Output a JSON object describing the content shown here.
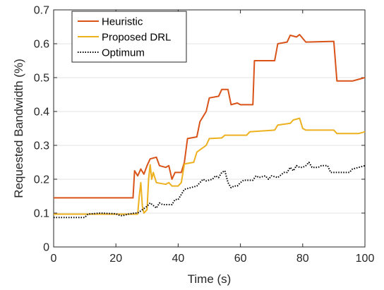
{
  "chart_data": {
    "type": "line",
    "title": "",
    "xlabel": "Time (s)",
    "ylabel": "Requested Bandwidth (%)",
    "xlim": [
      0,
      100
    ],
    "ylim": [
      0,
      0.7
    ],
    "x_ticks": [
      0,
      20,
      40,
      60,
      80,
      100
    ],
    "y_ticks": [
      0,
      0.1,
      0.2,
      0.3,
      0.4,
      0.5,
      0.6,
      0.7
    ],
    "x_tick_labels": [
      "0",
      "20",
      "40",
      "60",
      "80",
      "100"
    ],
    "y_tick_labels": [
      "0",
      "0.1",
      "0.2",
      "0.3",
      "0.4",
      "0.5",
      "0.6",
      "0.7"
    ],
    "grid": "horizontal",
    "legend_position": "top-left",
    "series": [
      {
        "name": "Heuristic",
        "color": "#D95319",
        "style": "solid",
        "points": [
          [
            0,
            0.145
          ],
          [
            25.5,
            0.145
          ],
          [
            26,
            0.225
          ],
          [
            27,
            0.21
          ],
          [
            28,
            0.23
          ],
          [
            29,
            0.215
          ],
          [
            30,
            0.24
          ],
          [
            31,
            0.26
          ],
          [
            33,
            0.265
          ],
          [
            34,
            0.24
          ],
          [
            36,
            0.235
          ],
          [
            37,
            0.24
          ],
          [
            38,
            0.2
          ],
          [
            39,
            0.22
          ],
          [
            41,
            0.22
          ],
          [
            42,
            0.25
          ],
          [
            43,
            0.32
          ],
          [
            46,
            0.325
          ],
          [
            47,
            0.37
          ],
          [
            49,
            0.4
          ],
          [
            50,
            0.44
          ],
          [
            53,
            0.445
          ],
          [
            54,
            0.465
          ],
          [
            56,
            0.465
          ],
          [
            57,
            0.42
          ],
          [
            59,
            0.425
          ],
          [
            60,
            0.42
          ],
          [
            64,
            0.42
          ],
          [
            64.5,
            0.55
          ],
          [
            71,
            0.55
          ],
          [
            72,
            0.6
          ],
          [
            75,
            0.605
          ],
          [
            76,
            0.625
          ],
          [
            78,
            0.62
          ],
          [
            79,
            0.627
          ],
          [
            81,
            0.605
          ],
          [
            90,
            0.607
          ],
          [
            91,
            0.49
          ],
          [
            96,
            0.49
          ],
          [
            98,
            0.495
          ],
          [
            100,
            0.5
          ]
        ]
      },
      {
        "name": "Proposed DRL",
        "color": "#EDB120",
        "style": "solid",
        "points": [
          [
            0,
            0.097
          ],
          [
            27,
            0.097
          ],
          [
            27.5,
            0.15
          ],
          [
            28,
            0.19
          ],
          [
            28.5,
            0.12
          ],
          [
            29,
            0.1
          ],
          [
            30,
            0.11
          ],
          [
            30.5,
            0.2
          ],
          [
            31,
            0.243
          ],
          [
            31.5,
            0.2
          ],
          [
            32,
            0.22
          ],
          [
            33,
            0.19
          ],
          [
            36,
            0.185
          ],
          [
            37,
            0.19
          ],
          [
            38,
            0.18
          ],
          [
            40,
            0.18
          ],
          [
            41,
            0.19
          ],
          [
            42,
            0.245
          ],
          [
            45,
            0.25
          ],
          [
            46,
            0.28
          ],
          [
            49,
            0.3
          ],
          [
            50,
            0.32
          ],
          [
            54,
            0.322
          ],
          [
            55,
            0.33
          ],
          [
            62,
            0.33
          ],
          [
            63,
            0.34
          ],
          [
            71,
            0.345
          ],
          [
            72,
            0.36
          ],
          [
            76,
            0.365
          ],
          [
            77,
            0.375
          ],
          [
            79,
            0.38
          ],
          [
            80,
            0.35
          ],
          [
            81,
            0.345
          ],
          [
            90,
            0.345
          ],
          [
            91,
            0.335
          ],
          [
            98,
            0.335
          ],
          [
            100,
            0.34
          ]
        ]
      },
      {
        "name": "Optimum",
        "color": "#000000",
        "style": "dotted",
        "points": [
          [
            0,
            0.087
          ],
          [
            10,
            0.087
          ],
          [
            11,
            0.097
          ],
          [
            15,
            0.1
          ],
          [
            20,
            0.098
          ],
          [
            21,
            0.094
          ],
          [
            22,
            0.092
          ],
          [
            24,
            0.097
          ],
          [
            26,
            0.1
          ],
          [
            27,
            0.1
          ],
          [
            30,
            0.12
          ],
          [
            31,
            0.13
          ],
          [
            33,
            0.115
          ],
          [
            34,
            0.13
          ],
          [
            35,
            0.125
          ],
          [
            38,
            0.125
          ],
          [
            39,
            0.14
          ],
          [
            40,
            0.14
          ],
          [
            41,
            0.155
          ],
          [
            42,
            0.17
          ],
          [
            44,
            0.175
          ],
          [
            46,
            0.18
          ],
          [
            48,
            0.2
          ],
          [
            49,
            0.195
          ],
          [
            51,
            0.2
          ],
          [
            52,
            0.21
          ],
          [
            53,
            0.205
          ],
          [
            54,
            0.22
          ],
          [
            55,
            0.225
          ],
          [
            56,
            0.19
          ],
          [
            57,
            0.175
          ],
          [
            58,
            0.18
          ],
          [
            59,
            0.18
          ],
          [
            60,
            0.19
          ],
          [
            61,
            0.197
          ],
          [
            64,
            0.197
          ],
          [
            65,
            0.21
          ],
          [
            66,
            0.205
          ],
          [
            68,
            0.21
          ],
          [
            69,
            0.2
          ],
          [
            70,
            0.21
          ],
          [
            72,
            0.205
          ],
          [
            74,
            0.22
          ],
          [
            75,
            0.22
          ],
          [
            76,
            0.235
          ],
          [
            77,
            0.225
          ],
          [
            78,
            0.24
          ],
          [
            79,
            0.235
          ],
          [
            80,
            0.235
          ],
          [
            81,
            0.24
          ],
          [
            82,
            0.25
          ],
          [
            83,
            0.235
          ],
          [
            85,
            0.235
          ],
          [
            86,
            0.24
          ],
          [
            88,
            0.24
          ],
          [
            89,
            0.22
          ],
          [
            95,
            0.22
          ],
          [
            96,
            0.23
          ],
          [
            98,
            0.235
          ],
          [
            100,
            0.24
          ]
        ]
      }
    ]
  }
}
